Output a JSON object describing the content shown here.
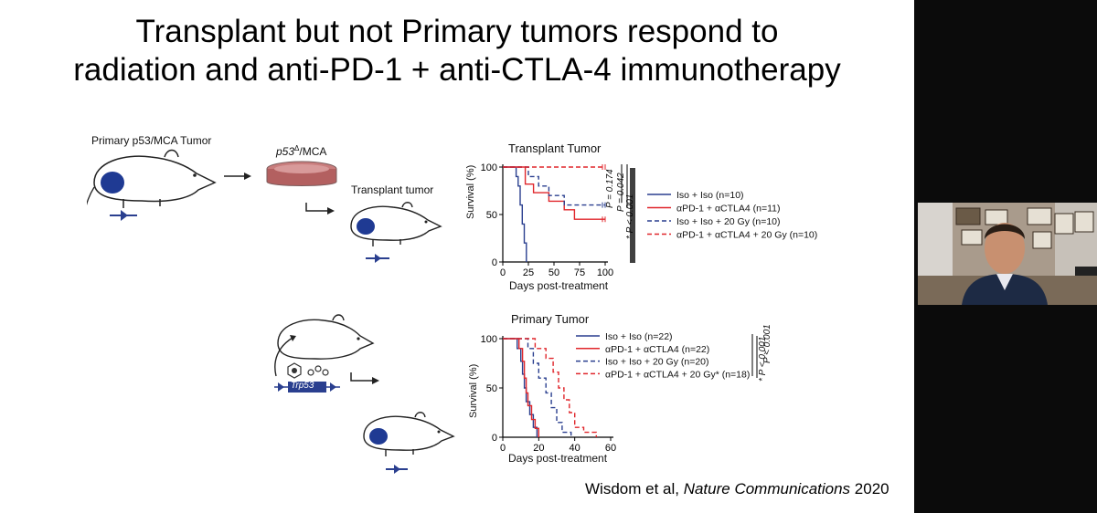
{
  "title_line1": "Transplant but not Primary tumors respond to",
  "title_line2": "radiation and anti-PD-1 + anti-CTLA-4 immunotherapy",
  "diagram": {
    "primary_label": "Primary p53/MCA Tumor",
    "dish_label": "p53",
    "dish_sup": "Δ",
    "dish_suffix": "/MCA",
    "transplant_label": "Transplant tumor",
    "trp53_label": "Trp53"
  },
  "colors": {
    "blue_solid": "#2a3f8f",
    "red_solid": "#e0262b",
    "blue_dashed": "#2a3f8f",
    "red_dashed": "#e0262b",
    "tumor": "#1f3a93"
  },
  "chart_data": [
    {
      "type": "line",
      "title": "Transplant Tumor",
      "xlabel": "Days post-treatment",
      "ylabel": "Survival (%)",
      "xlim": [
        0,
        100
      ],
      "ylim": [
        0,
        100
      ],
      "xticks": [
        "0",
        "25",
        "50",
        "75",
        "100"
      ],
      "yticks": [
        "0",
        "50",
        "100"
      ],
      "series": [
        {
          "name": "Iso + Iso (n=10)",
          "style": "solid",
          "color": "blue",
          "points": [
            [
              0,
              100
            ],
            [
              13,
              100
            ],
            [
              13,
              90
            ],
            [
              15,
              90
            ],
            [
              15,
              80
            ],
            [
              17,
              80
            ],
            [
              17,
              60
            ],
            [
              19,
              60
            ],
            [
              19,
              40
            ],
            [
              21,
              40
            ],
            [
              21,
              20
            ],
            [
              23,
              20
            ],
            [
              23,
              0
            ]
          ]
        },
        {
          "name": "αPD-1 + αCTLA4 (n=11)",
          "style": "solid",
          "color": "red",
          "points": [
            [
              0,
              100
            ],
            [
              22,
              100
            ],
            [
              22,
              82
            ],
            [
              30,
              82
            ],
            [
              30,
              73
            ],
            [
              45,
              73
            ],
            [
              45,
              64
            ],
            [
              60,
              64
            ],
            [
              60,
              55
            ],
            [
              70,
              55
            ],
            [
              70,
              45
            ],
            [
              100,
              45
            ]
          ]
        },
        {
          "name": "Iso + Iso + 20 Gy (n=10)",
          "style": "dashed",
          "color": "blue",
          "points": [
            [
              0,
              100
            ],
            [
              25,
              100
            ],
            [
              25,
              90
            ],
            [
              35,
              90
            ],
            [
              35,
              80
            ],
            [
              45,
              80
            ],
            [
              45,
              70
            ],
            [
              60,
              70
            ],
            [
              60,
              60
            ],
            [
              100,
              60
            ]
          ]
        },
        {
          "name": "αPD-1 + αCTLA4 + 20 Gy (n=10)",
          "style": "dashed",
          "color": "red",
          "points": [
            [
              0,
              100
            ],
            [
              100,
              100
            ]
          ]
        }
      ],
      "pvalues": [
        "P = 0.174",
        "P = 0.042",
        "* P < 0.001"
      ]
    },
    {
      "type": "line",
      "title": "Primary Tumor",
      "xlabel": "Days post-treatment",
      "ylabel": "Survival (%)",
      "xlim": [
        0,
        60
      ],
      "ylim": [
        0,
        100
      ],
      "xticks": [
        "0",
        "20",
        "40",
        "60"
      ],
      "yticks": [
        "0",
        "50",
        "100"
      ],
      "series": [
        {
          "name": "Iso + Iso (n=22)",
          "style": "solid",
          "color": "blue",
          "points": [
            [
              0,
              100
            ],
            [
              8,
              100
            ],
            [
              8,
              90
            ],
            [
              10,
              90
            ],
            [
              10,
              77
            ],
            [
              11,
              77
            ],
            [
              11,
              64
            ],
            [
              12,
              64
            ],
            [
              12,
              50
            ],
            [
              13,
              50
            ],
            [
              13,
              36
            ],
            [
              15,
              36
            ],
            [
              15,
              23
            ],
            [
              17,
              23
            ],
            [
              17,
              10
            ],
            [
              19,
              10
            ],
            [
              19,
              0
            ]
          ]
        },
        {
          "name": "αPD-1 + αCTLA4 (n=22)",
          "style": "solid",
          "color": "red",
          "points": [
            [
              0,
              100
            ],
            [
              9,
              100
            ],
            [
              9,
              90
            ],
            [
              11,
              90
            ],
            [
              11,
              77
            ],
            [
              12,
              77
            ],
            [
              12,
              60
            ],
            [
              13,
              60
            ],
            [
              13,
              45
            ],
            [
              14,
              45
            ],
            [
              14,
              32
            ],
            [
              16,
              32
            ],
            [
              16,
              18
            ],
            [
              18,
              18
            ],
            [
              18,
              9
            ],
            [
              20,
              9
            ],
            [
              20,
              0
            ]
          ]
        },
        {
          "name": "Iso + Iso + 20 Gy (n=20)",
          "style": "dashed",
          "color": "blue",
          "points": [
            [
              0,
              100
            ],
            [
              14,
              100
            ],
            [
              14,
              90
            ],
            [
              17,
              90
            ],
            [
              17,
              75
            ],
            [
              20,
              75
            ],
            [
              20,
              60
            ],
            [
              24,
              60
            ],
            [
              24,
              45
            ],
            [
              27,
              45
            ],
            [
              27,
              30
            ],
            [
              30,
              30
            ],
            [
              30,
              15
            ],
            [
              33,
              15
            ],
            [
              33,
              5
            ],
            [
              38,
              5
            ],
            [
              38,
              0
            ]
          ]
        },
        {
          "name": "αPD-1 + αCTLA4 + 20 Gy* (n=18)",
          "style": "dashed",
          "color": "red",
          "points": [
            [
              0,
              100
            ],
            [
              18,
              100
            ],
            [
              18,
              90
            ],
            [
              24,
              90
            ],
            [
              24,
              80
            ],
            [
              28,
              80
            ],
            [
              28,
              66
            ],
            [
              31,
              66
            ],
            [
              31,
              50
            ],
            [
              34,
              50
            ],
            [
              34,
              38
            ],
            [
              37,
              38
            ],
            [
              37,
              25
            ],
            [
              40,
              25
            ],
            [
              40,
              10
            ],
            [
              45,
              10
            ],
            [
              45,
              5
            ],
            [
              52,
              5
            ],
            [
              52,
              0
            ]
          ]
        }
      ],
      "pvalues": [
        "P < 0.001",
        "* P < 0.001"
      ]
    }
  ],
  "citation_authors": "Wisdom et al, ",
  "citation_journal": "Nature Communications",
  "citation_year": " 2020"
}
